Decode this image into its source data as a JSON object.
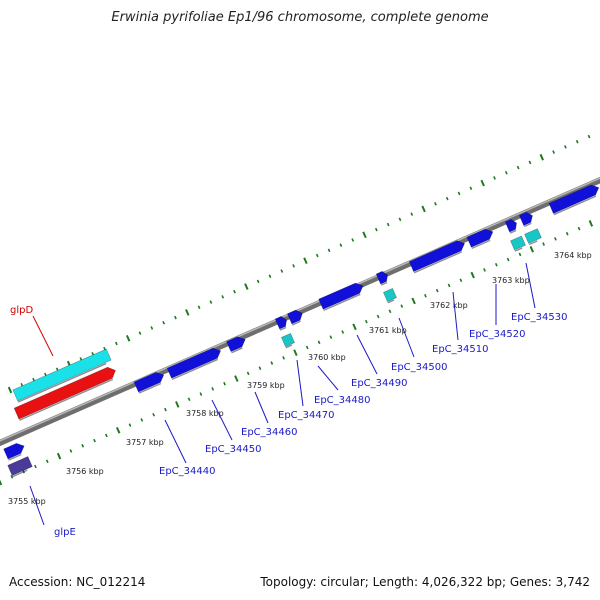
{
  "title": "Erwinia pyrifoliae Ep1/96 chromosome, complete genome",
  "footer": {
    "accession": "Accession: NC_012214",
    "summary": "Topology: circular; Length: 4,026,322 bp; Genes: 3,742"
  },
  "colors": {
    "backbone": "#8a8a8a",
    "forward_gene": "#1010d8",
    "trna": "#19c6c6",
    "highlight_cyan": "#1ae0e8",
    "highlight_red": "#e81010",
    "purple_gene": "#4a3a9a",
    "tick": "#1f7a1f",
    "label_blue": "#1a1ac8",
    "label_red": "#d40000"
  },
  "scale_labels": [
    "3755 kbp",
    "3756 kbp",
    "3757 kbp",
    "3758 kbp",
    "3759 kbp",
    "3760 kbp",
    "3761 kbp",
    "3762 kbp",
    "3763 kbp",
    "3764 kbp"
  ],
  "gene_labels": [
    {
      "name": "glpD",
      "color": "red"
    },
    {
      "name": "glpE",
      "color": "blue"
    },
    {
      "name": "EpC_34440",
      "color": "blue"
    },
    {
      "name": "EpC_34450",
      "color": "blue"
    },
    {
      "name": "EpC_34460",
      "color": "blue"
    },
    {
      "name": "EpC_34470",
      "color": "blue"
    },
    {
      "name": "EpC_34480",
      "color": "blue"
    },
    {
      "name": "EpC_34490",
      "color": "blue"
    },
    {
      "name": "EpC_34500",
      "color": "blue"
    },
    {
      "name": "EpC_34510",
      "color": "blue"
    },
    {
      "name": "EpC_34520",
      "color": "blue"
    },
    {
      "name": "EpC_34530",
      "color": "blue"
    }
  ]
}
